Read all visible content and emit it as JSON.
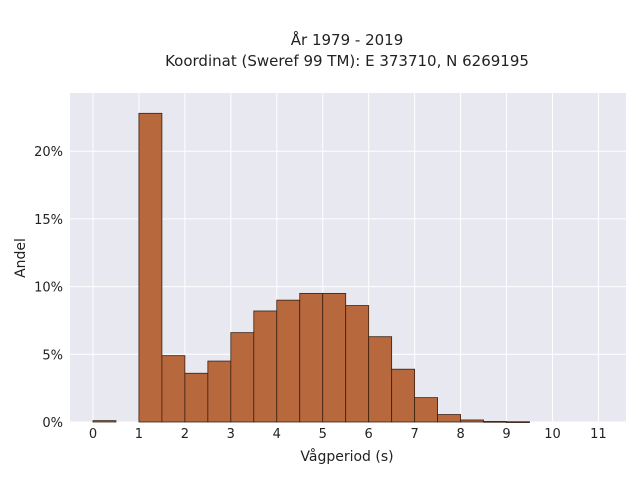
{
  "chart_data": {
    "type": "bar",
    "title": "År 1979 - 2019",
    "subtitle": "Koordinat (Sweref 99 TM): E 373710, N 6269195",
    "xlabel": "Vågperiod (s)",
    "ylabel": "Andel",
    "bin_width": 0.5,
    "bin_starts": [
      0,
      0.5,
      1,
      1.5,
      2,
      2.5,
      3,
      3.5,
      4,
      4.5,
      5,
      5.5,
      6,
      6.5,
      7,
      7.5,
      8,
      8.5,
      9,
      9.5,
      10,
      10.5,
      11
    ],
    "values": [
      0.1,
      0,
      22.8,
      4.9,
      3.6,
      4.5,
      6.6,
      8.2,
      9.0,
      9.5,
      9.5,
      8.6,
      6.3,
      3.9,
      1.8,
      0.55,
      0.15,
      0.04,
      0.02,
      0,
      0,
      0,
      0
    ],
    "x_ticks": [
      0,
      1,
      2,
      3,
      4,
      5,
      6,
      7,
      8,
      9,
      10,
      11
    ],
    "x_tick_labels": [
      "0",
      "1",
      "2",
      "3",
      "4",
      "5",
      "6",
      "7",
      "8",
      "9",
      "10",
      "11"
    ],
    "y_ticks": [
      0,
      5,
      10,
      15,
      20
    ],
    "y_tick_labels": [
      "0%",
      "5%",
      "10%",
      "15%",
      "20%"
    ],
    "xlim": [
      -0.5,
      11.6
    ],
    "ylim": [
      0,
      24.3
    ],
    "grid": true,
    "colors": {
      "bar_fill": "#b8683d",
      "bar_edge": "#3a2010",
      "plot_background": "#e8e8f1",
      "grid": "#ffffff"
    }
  }
}
